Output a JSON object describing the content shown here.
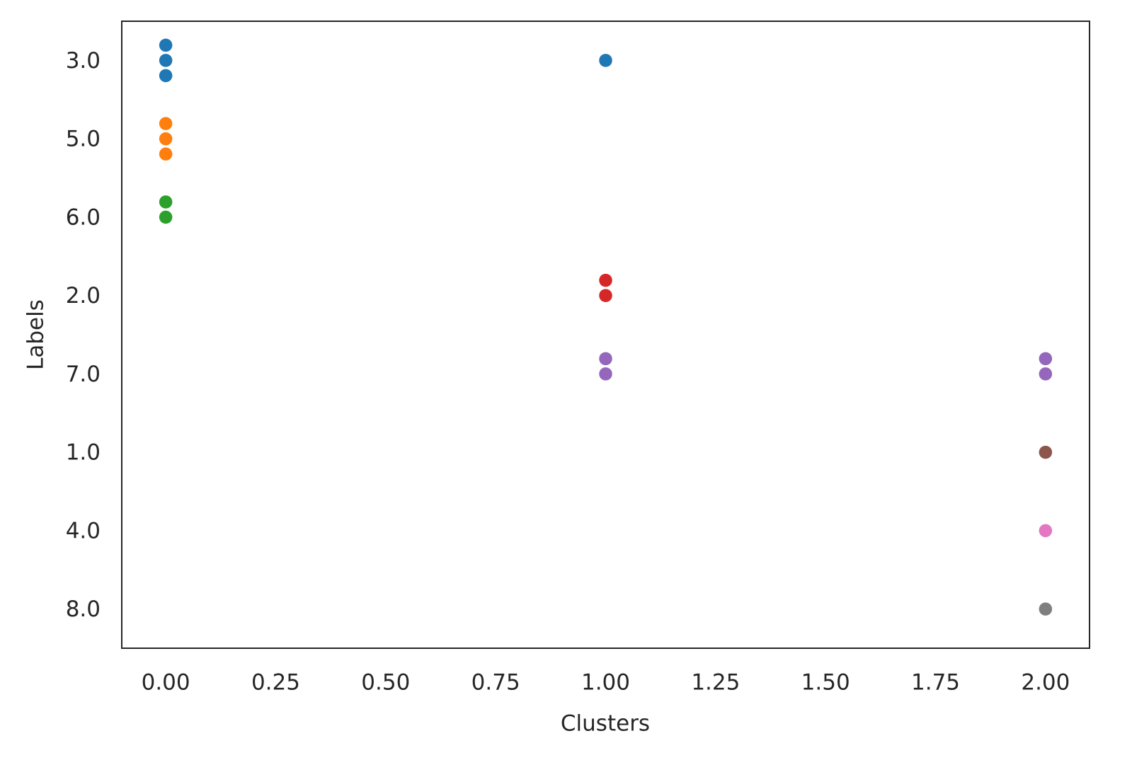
{
  "chart_data": {
    "type": "scatter",
    "x_label": "Clusters",
    "y_label": "Labels",
    "categories": [
      "3.0",
      "5.0",
      "6.0",
      "2.0",
      "7.0",
      "1.0",
      "4.0",
      "8.0"
    ],
    "series": [
      {
        "color": "#1f77b4",
        "x": [
          0,
          0,
          0,
          1
        ]
      },
      {
        "color": "#ff7f0e",
        "x": [
          0,
          0,
          0
        ]
      },
      {
        "color": "#2ca02c",
        "x": [
          0,
          0
        ]
      },
      {
        "color": "#d62728",
        "x": [
          1,
          1
        ]
      },
      {
        "color": "#9467bd",
        "x": [
          1,
          1,
          2,
          2
        ]
      },
      {
        "color": "#8c564b",
        "x": [
          2
        ]
      },
      {
        "color": "#e377c2",
        "x": [
          2
        ]
      },
      {
        "color": "#7f7f7f",
        "x": [
          2
        ]
      }
    ],
    "xlim": [
      -0.1,
      2.1
    ],
    "xticks": [
      {
        "value": 0,
        "label": "0.00"
      },
      {
        "value": 0.25,
        "label": "0.25"
      },
      {
        "value": 0.5,
        "label": "0.50"
      },
      {
        "value": 0.75,
        "label": "0.75"
      },
      {
        "value": 1,
        "label": "1.00"
      },
      {
        "value": 1.25,
        "label": "1.25"
      },
      {
        "value": 1.5,
        "label": "1.50"
      },
      {
        "value": 1.75,
        "label": "1.75"
      },
      {
        "value": 2,
        "label": "2.00"
      }
    ],
    "grid": false
  }
}
